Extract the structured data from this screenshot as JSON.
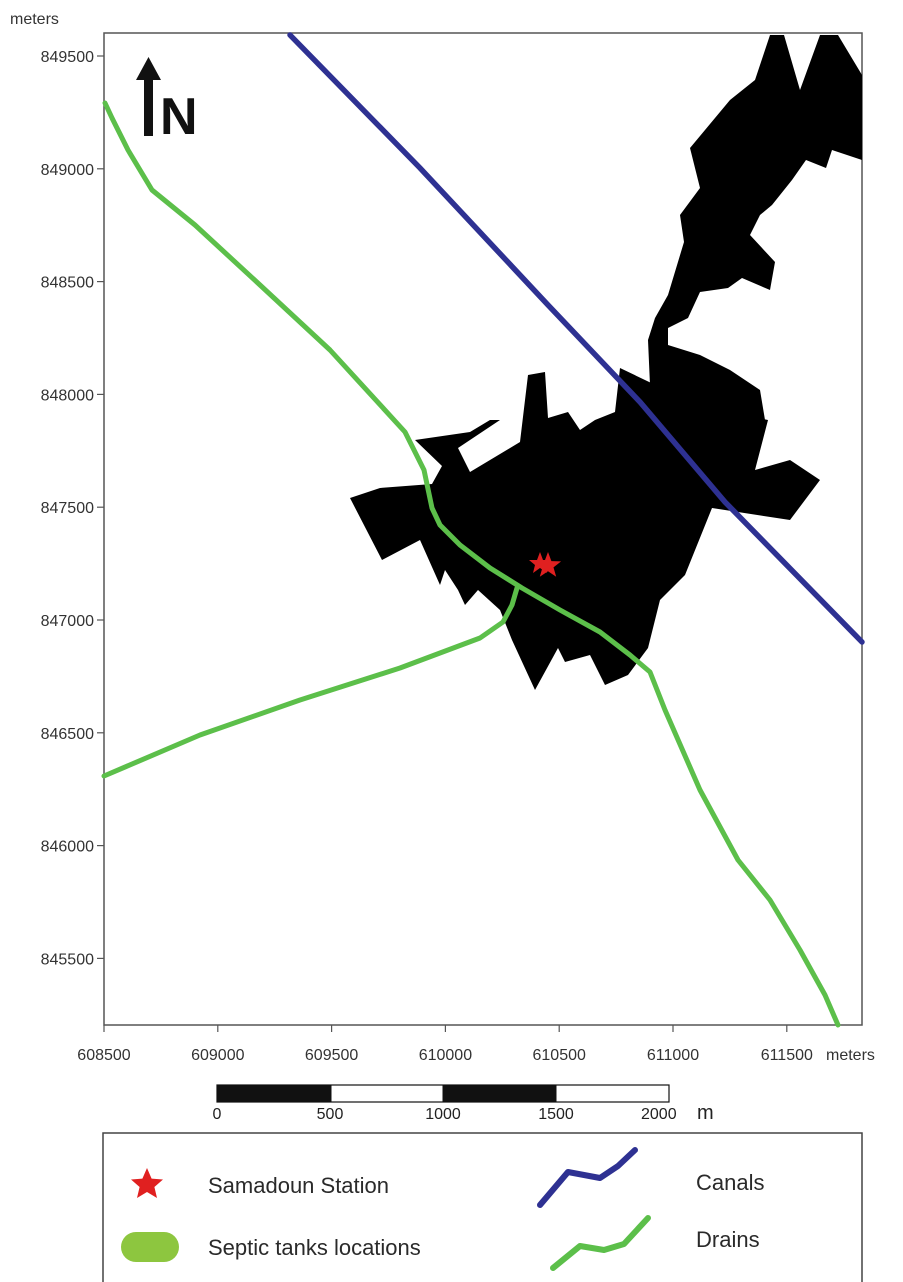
{
  "axes": {
    "y_unit_label": "meters",
    "x_unit_label": "meters",
    "y_ticks": [
      "849500",
      "849000",
      "848500",
      "848000",
      "847500",
      "847000",
      "846500",
      "846000",
      "845500"
    ],
    "x_ticks": [
      "608500",
      "609000",
      "609500",
      "610000",
      "610500",
      "611000",
      "611500"
    ]
  },
  "north_arrow": {
    "letter": "N",
    "icon": "north-arrow-icon"
  },
  "scale_bar": {
    "labels": [
      "0",
      "500",
      "1000",
      "1500",
      "2000"
    ],
    "unit": "m"
  },
  "legend": {
    "items": [
      {
        "label": "Samadoun Station",
        "icon": "red-star-icon",
        "color": "#e02020"
      },
      {
        "label": "Septic tanks locations",
        "icon": "green-blob-icon",
        "color": "#8dc63f"
      },
      {
        "label": "Canals",
        "icon": "blue-line-icon",
        "color": "#2e3192"
      },
      {
        "label": "Drains",
        "icon": "green-line-icon",
        "color": "#5cbf4a"
      }
    ]
  },
  "colors": {
    "septic_fill": "#8dc63f",
    "canal": "#2e3192",
    "drain": "#5cbf4a",
    "station": "#e02020",
    "frame": "#444444"
  }
}
